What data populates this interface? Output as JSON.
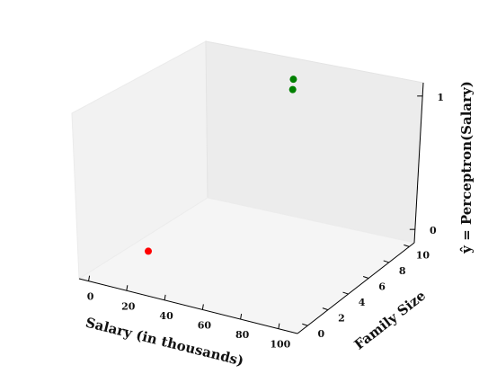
{
  "chart_data": {
    "type": "scatter",
    "projection": "3d",
    "title": "",
    "xlabel": "Salary (in thousands)",
    "ylabel": "Family Size",
    "zlabel": "ŷ = Perceptron(Salary)",
    "xlim": [
      -5,
      110
    ],
    "ylim": [
      -1,
      10.5
    ],
    "zlim": [
      -0.1,
      1.1
    ],
    "xticks": [
      "0",
      "20",
      "40",
      "60",
      "80",
      "100"
    ],
    "yticks": [
      "0",
      "2",
      "4",
      "6",
      "8",
      "10"
    ],
    "zticks": [
      "0",
      "1"
    ],
    "grid": false,
    "points": [
      {
        "x": 15,
        "y": 2,
        "z": 0,
        "color": "#ff0000"
      },
      {
        "x": 50,
        "y": 9,
        "z": 1,
        "color": "#008000"
      },
      {
        "x": 55,
        "y": 8,
        "z": 1,
        "color": "#008000"
      }
    ]
  }
}
